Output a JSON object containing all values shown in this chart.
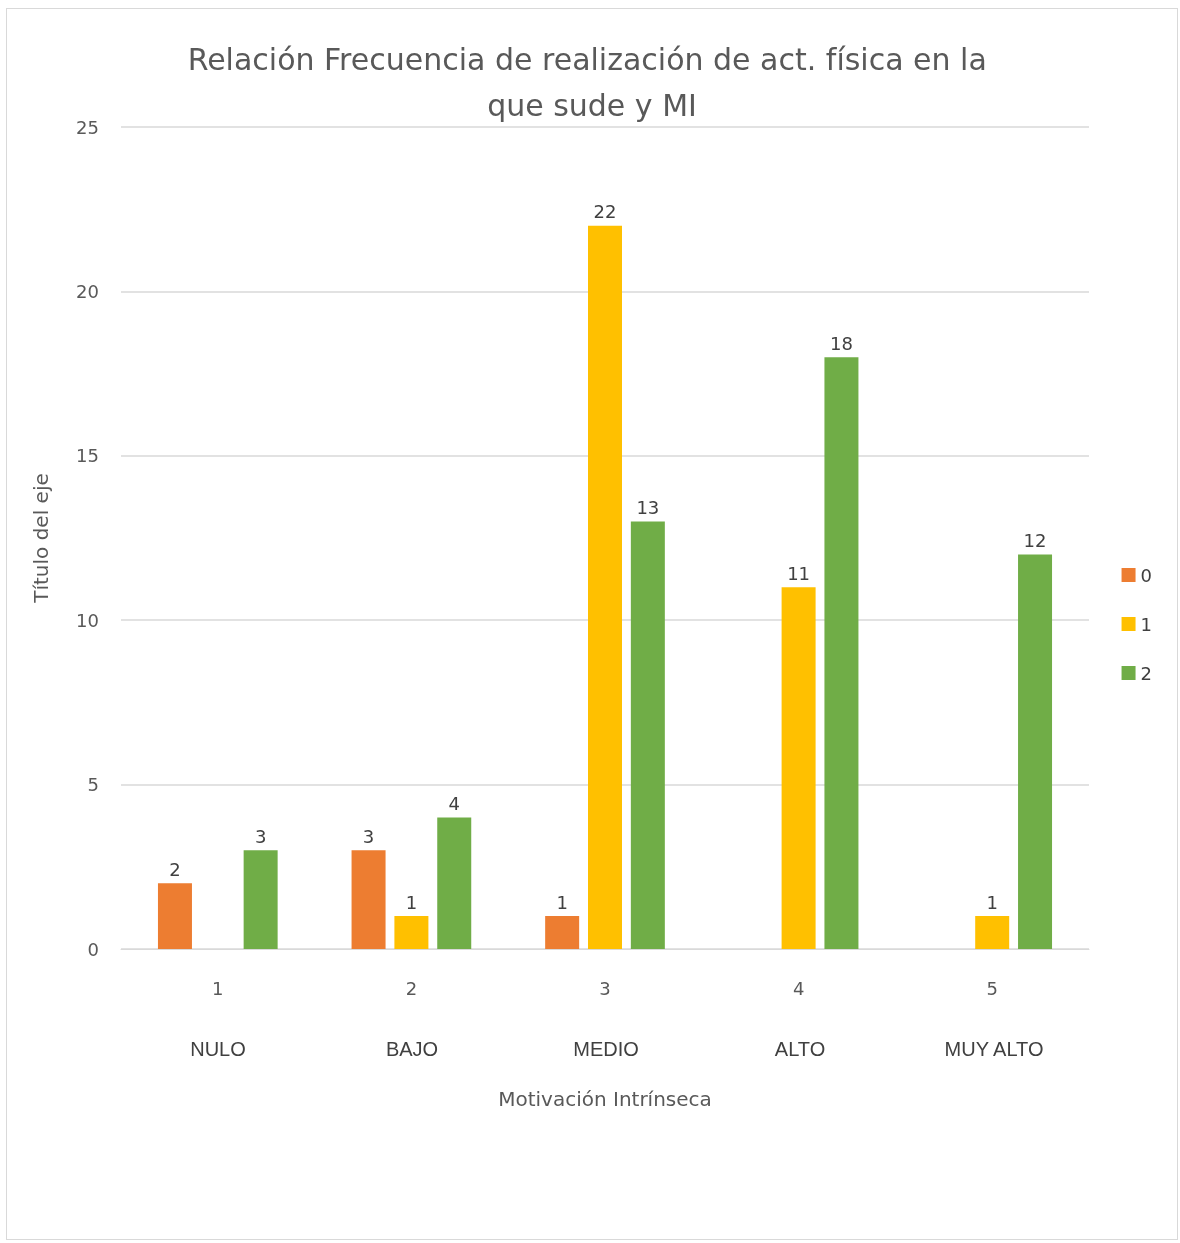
{
  "chart_data": {
    "type": "bar",
    "title": "Relación Frecuencia de realización de act. física en la que sude y MI",
    "xlabel": "Motivación Intrínseca",
    "ylabel": "Título del eje",
    "categories": [
      "1",
      "2",
      "3",
      "4",
      "5"
    ],
    "series": [
      {
        "name": "0",
        "color": "#ed7d31",
        "values": [
          2,
          3,
          1,
          null,
          null
        ]
      },
      {
        "name": "1",
        "color": "#ffc000",
        "values": [
          null,
          1,
          22,
          11,
          1
        ]
      },
      {
        "name": "2",
        "color": "#70ad47",
        "values": [
          3,
          4,
          13,
          18,
          12
        ]
      }
    ],
    "ylim": [
      0,
      25
    ],
    "yticks": [
      0,
      5,
      10,
      15,
      20,
      25
    ],
    "grid": "y",
    "legend": "right",
    "data_labels": true,
    "annotations": [
      "NULO",
      "BAJO",
      "MEDIO",
      "ALTO",
      "MUY ALTO"
    ]
  }
}
